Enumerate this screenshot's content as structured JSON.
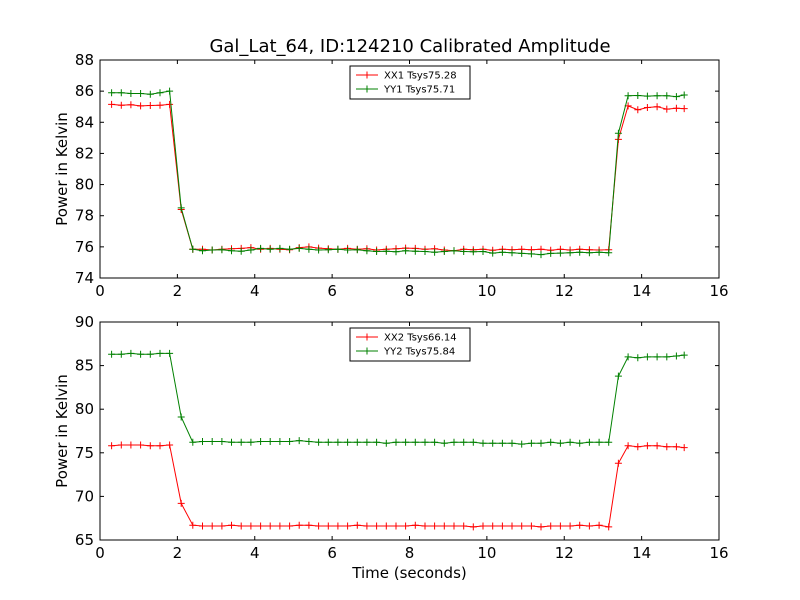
{
  "figure": {
    "title": "Gal_Lat_64, ID:124210 Calibrated Amplitude"
  },
  "chart_data": [
    {
      "type": "line",
      "ylabel": "Power in Kelvin",
      "xlabel": "",
      "xlim": [
        0,
        16
      ],
      "ylim": [
        74,
        88
      ],
      "xticks": [
        0,
        2,
        4,
        6,
        8,
        10,
        12,
        14,
        16
      ],
      "yticks": [
        74,
        76,
        78,
        80,
        82,
        84,
        86,
        88
      ],
      "grid": false,
      "legend_position": "top-center",
      "x": [
        0.3,
        0.55,
        0.8,
        1.05,
        1.3,
        1.55,
        1.8,
        2.1,
        2.4,
        2.65,
        2.9,
        3.15,
        3.4,
        3.65,
        3.9,
        4.15,
        4.4,
        4.65,
        4.9,
        5.15,
        5.4,
        5.65,
        5.9,
        6.15,
        6.4,
        6.65,
        6.9,
        7.15,
        7.4,
        7.65,
        7.9,
        8.15,
        8.4,
        8.65,
        8.9,
        9.15,
        9.4,
        9.65,
        9.9,
        10.15,
        10.4,
        10.65,
        10.9,
        11.15,
        11.4,
        11.65,
        11.9,
        12.15,
        12.4,
        12.65,
        12.9,
        13.15,
        13.4,
        13.65,
        13.9,
        14.15,
        14.4,
        14.65,
        14.9,
        15.1
      ],
      "series": [
        {
          "name": "XX1 Tsys75.28",
          "color": "#ff0000",
          "values": [
            85.15,
            85.1,
            85.12,
            85.05,
            85.08,
            85.1,
            85.15,
            78.4,
            75.85,
            75.85,
            75.8,
            75.85,
            75.88,
            75.9,
            75.95,
            75.85,
            75.9,
            75.85,
            75.82,
            75.95,
            76.0,
            75.92,
            75.88,
            75.85,
            75.9,
            75.85,
            75.88,
            75.8,
            75.85,
            75.88,
            75.92,
            75.9,
            75.85,
            75.88,
            75.8,
            75.75,
            75.85,
            75.82,
            75.85,
            75.78,
            75.85,
            75.82,
            75.85,
            75.82,
            75.85,
            75.78,
            75.85,
            75.8,
            75.85,
            75.82,
            75.8,
            75.82,
            82.9,
            85.05,
            84.8,
            84.95,
            85.0,
            84.85,
            84.9,
            84.88
          ]
        },
        {
          "name": "YY1 Tsys75.71",
          "color": "#008000",
          "values": [
            85.9,
            85.9,
            85.85,
            85.85,
            85.8,
            85.9,
            86.0,
            78.5,
            75.85,
            75.75,
            75.8,
            75.82,
            75.75,
            75.72,
            75.8,
            75.9,
            75.85,
            75.9,
            75.85,
            75.9,
            75.85,
            75.8,
            75.82,
            75.85,
            75.8,
            75.82,
            75.75,
            75.7,
            75.72,
            75.68,
            75.75,
            75.72,
            75.7,
            75.65,
            75.7,
            75.75,
            75.7,
            75.68,
            75.7,
            75.6,
            75.65,
            75.62,
            75.58,
            75.55,
            75.5,
            75.58,
            75.6,
            75.62,
            75.65,
            75.62,
            75.65,
            75.62,
            83.3,
            85.7,
            85.72,
            85.68,
            85.7,
            85.7,
            85.65,
            85.75
          ]
        }
      ]
    },
    {
      "type": "line",
      "ylabel": "Power in Kelvin",
      "xlabel": "Time (seconds)",
      "xlim": [
        0,
        16
      ],
      "ylim": [
        65,
        90
      ],
      "xticks": [
        0,
        2,
        4,
        6,
        8,
        10,
        12,
        14,
        16
      ],
      "yticks": [
        65,
        70,
        75,
        80,
        85,
        90
      ],
      "grid": false,
      "legend_position": "top-center",
      "x": [
        0.3,
        0.55,
        0.8,
        1.05,
        1.3,
        1.55,
        1.8,
        2.1,
        2.4,
        2.65,
        2.9,
        3.15,
        3.4,
        3.65,
        3.9,
        4.15,
        4.4,
        4.65,
        4.9,
        5.15,
        5.4,
        5.65,
        5.9,
        6.15,
        6.4,
        6.65,
        6.9,
        7.15,
        7.4,
        7.65,
        7.9,
        8.15,
        8.4,
        8.65,
        8.9,
        9.15,
        9.4,
        9.65,
        9.9,
        10.15,
        10.4,
        10.65,
        10.9,
        11.15,
        11.4,
        11.65,
        11.9,
        12.15,
        12.4,
        12.65,
        12.9,
        13.15,
        13.4,
        13.65,
        13.9,
        14.15,
        14.4,
        14.65,
        14.9,
        15.1
      ],
      "series": [
        {
          "name": "XX2 Tsys66.14",
          "color": "#ff0000",
          "values": [
            75.8,
            75.9,
            75.9,
            75.9,
            75.8,
            75.8,
            75.9,
            69.2,
            66.7,
            66.6,
            66.6,
            66.6,
            66.7,
            66.6,
            66.6,
            66.6,
            66.6,
            66.6,
            66.6,
            66.7,
            66.7,
            66.6,
            66.6,
            66.6,
            66.6,
            66.7,
            66.6,
            66.6,
            66.6,
            66.6,
            66.6,
            66.7,
            66.6,
            66.6,
            66.6,
            66.6,
            66.6,
            66.5,
            66.6,
            66.6,
            66.6,
            66.6,
            66.6,
            66.6,
            66.5,
            66.6,
            66.6,
            66.6,
            66.7,
            66.6,
            66.7,
            66.5,
            73.8,
            75.8,
            75.7,
            75.8,
            75.8,
            75.7,
            75.7,
            75.6
          ]
        },
        {
          "name": "YY2 Tsys75.84",
          "color": "#008000",
          "values": [
            86.3,
            86.3,
            86.4,
            86.3,
            86.3,
            86.4,
            86.4,
            79.1,
            76.2,
            76.3,
            76.3,
            76.3,
            76.2,
            76.2,
            76.2,
            76.3,
            76.3,
            76.3,
            76.3,
            76.4,
            76.3,
            76.2,
            76.2,
            76.2,
            76.2,
            76.2,
            76.2,
            76.2,
            76.1,
            76.2,
            76.2,
            76.2,
            76.2,
            76.2,
            76.1,
            76.2,
            76.2,
            76.2,
            76.1,
            76.1,
            76.1,
            76.1,
            76.0,
            76.1,
            76.1,
            76.2,
            76.1,
            76.2,
            76.1,
            76.2,
            76.2,
            76.2,
            83.8,
            86.0,
            85.9,
            86.0,
            86.0,
            86.0,
            86.1,
            86.2
          ]
        }
      ]
    }
  ]
}
